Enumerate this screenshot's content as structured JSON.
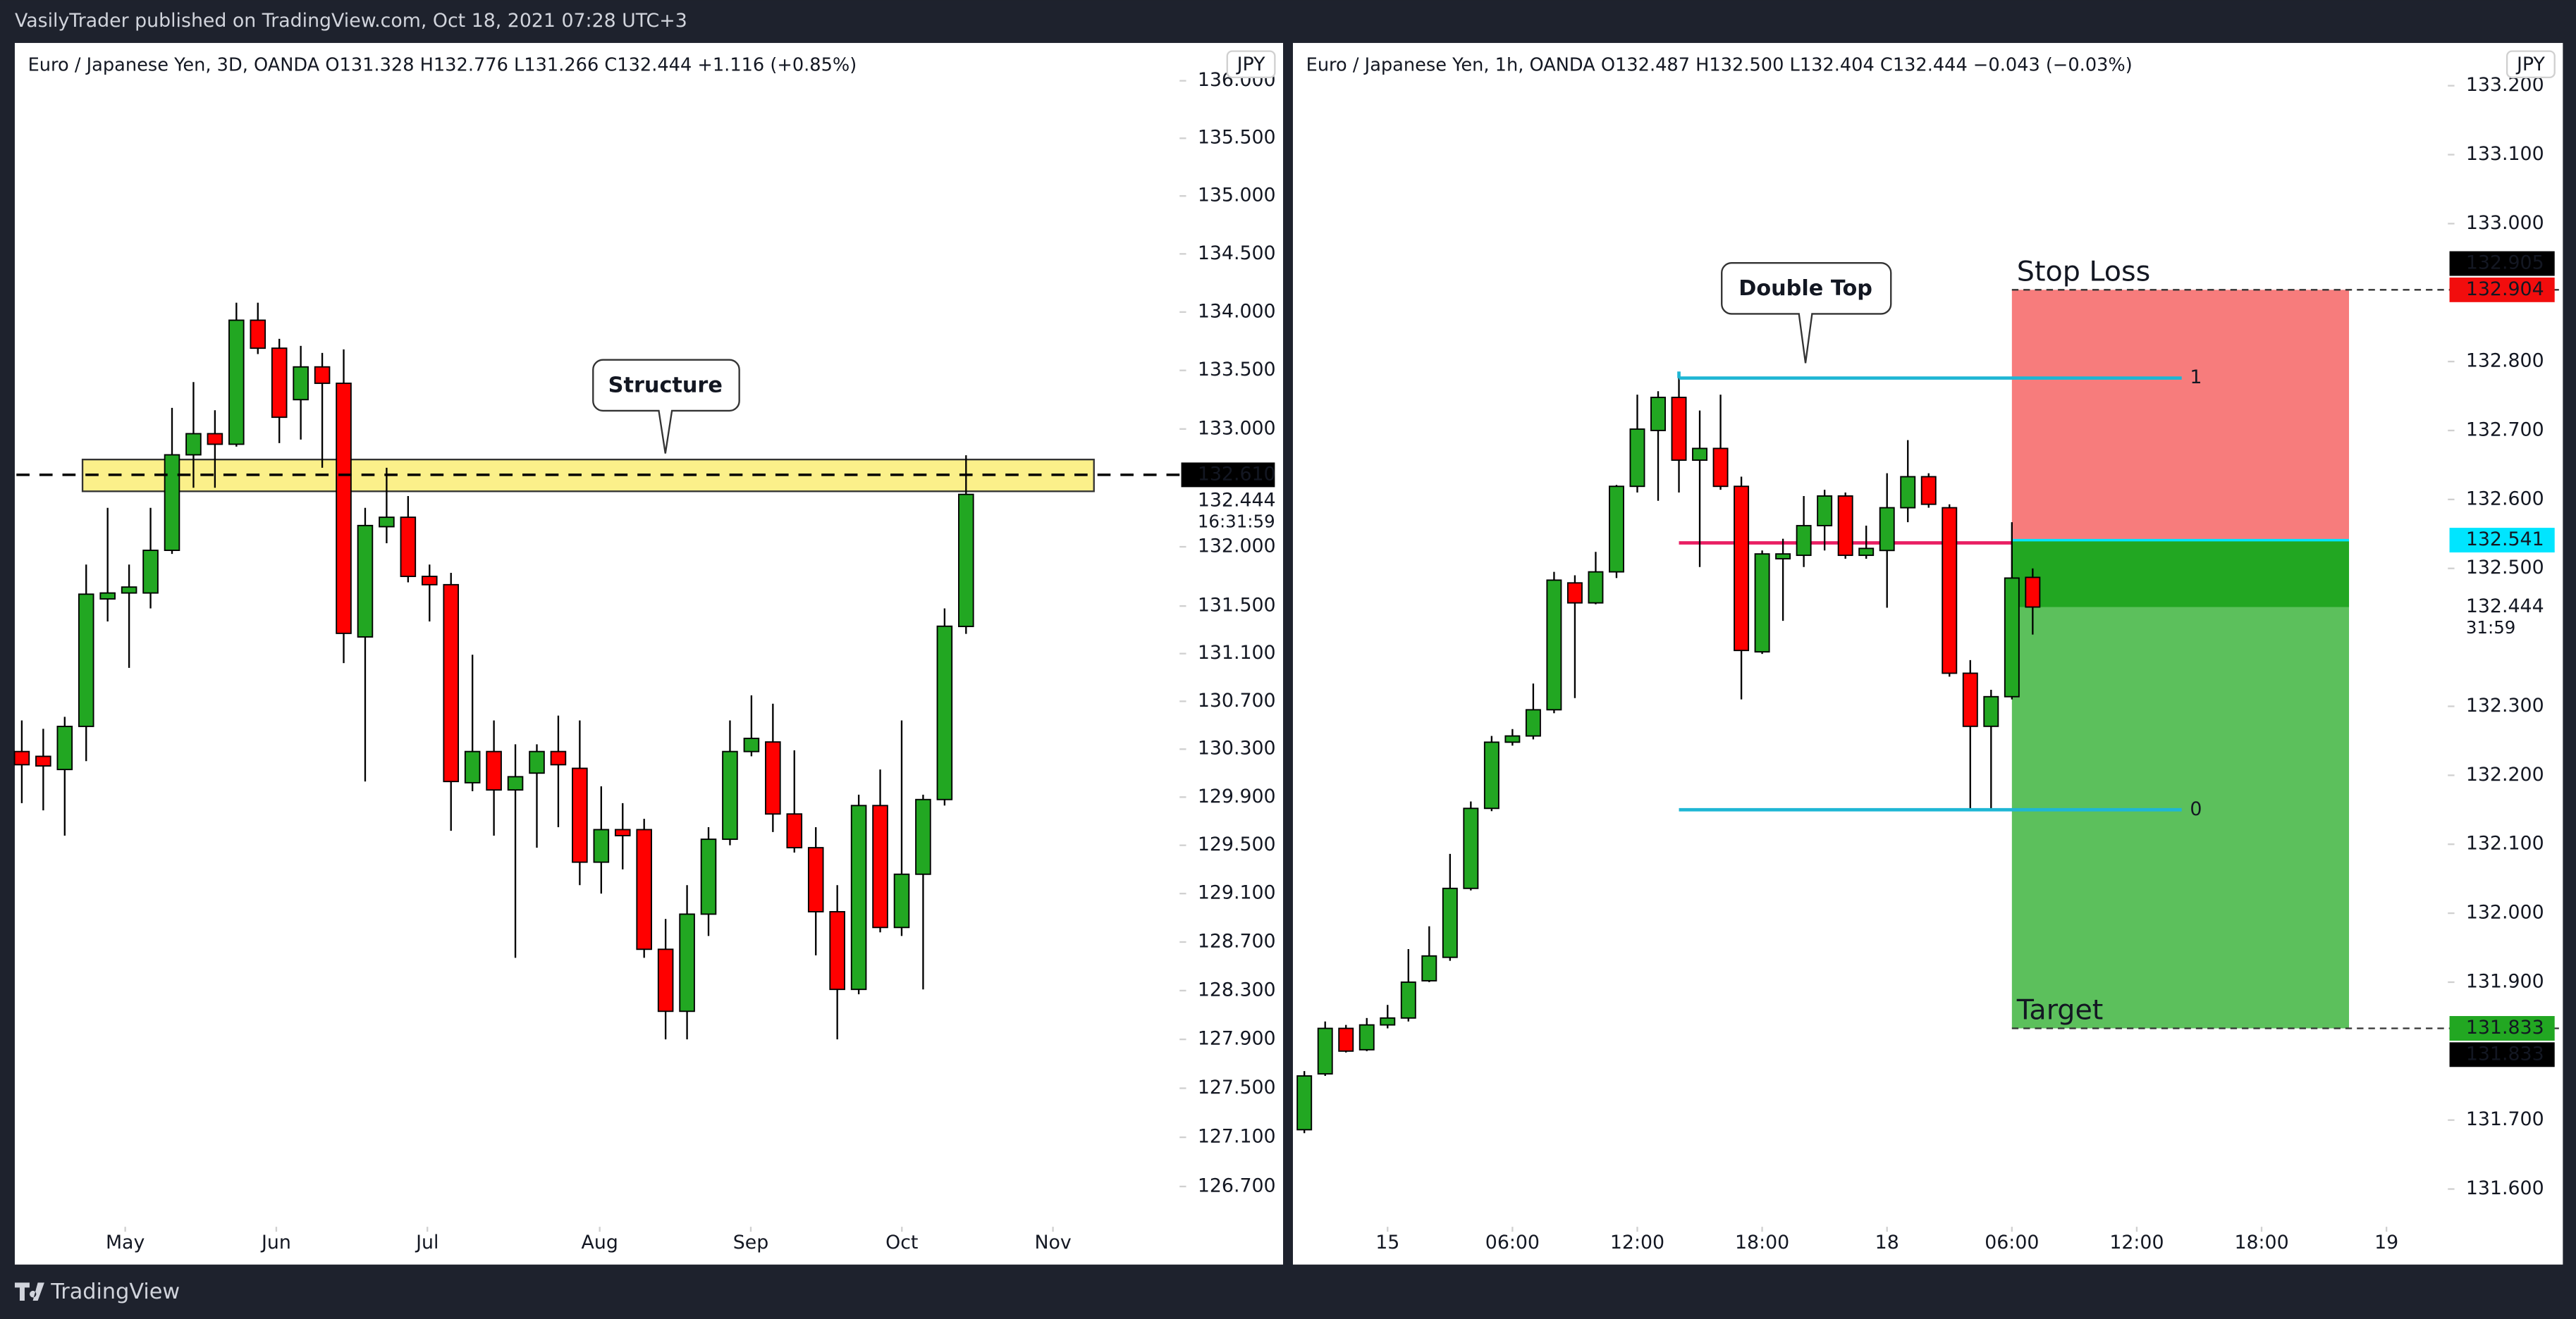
{
  "header": "VasilyTrader published on TradingView.com, Oct 18, 2021 07:28 UTC+3",
  "footer": "TradingView",
  "chart_data": [
    {
      "type": "candlestick",
      "title": "Euro / Japanese Yen, 3D, OANDA  O131.328  H132.776  L131.266  C132.444  +1.116 (+0.85%)",
      "currency": "JPY",
      "log": true,
      "up_color": "#22a722",
      "down_color": "#ff0000",
      "ylim": [
        126.4,
        136.33
      ],
      "yticks": [
        {
          "value": 136,
          "label": "136.000"
        },
        {
          "value": 135.5,
          "label": "135.500"
        },
        {
          "value": 135,
          "label": "135.000"
        },
        {
          "value": 134.5,
          "label": "134.500"
        },
        {
          "value": 134,
          "label": "134.000"
        },
        {
          "value": 133.5,
          "label": "133.500"
        },
        {
          "value": 133,
          "label": "133.000"
        },
        {
          "value": 132,
          "label": "132.000"
        },
        {
          "value": 131.5,
          "label": "131.500"
        },
        {
          "value": 131.1,
          "label": "131.100"
        },
        {
          "value": 130.7,
          "label": "130.700"
        },
        {
          "value": 130.3,
          "label": "130.300"
        },
        {
          "value": 129.9,
          "label": "129.900"
        },
        {
          "value": 129.5,
          "label": "129.500"
        },
        {
          "value": 129.1,
          "label": "129.100"
        },
        {
          "value": 128.7,
          "label": "128.700"
        },
        {
          "value": 128.3,
          "label": "128.300"
        },
        {
          "value": 127.9,
          "label": "127.900"
        },
        {
          "value": 127.5,
          "label": "127.500"
        },
        {
          "value": 127.1,
          "label": "127.100"
        },
        {
          "value": 126.7,
          "label": "126.700"
        }
      ],
      "xlim": [
        -0.25,
        53.95
      ],
      "xticks": [
        {
          "value": 4.82,
          "label": "May"
        },
        {
          "value": 11.86,
          "label": "Jun"
        },
        {
          "value": 18.9,
          "label": "Jul"
        },
        {
          "value": 26.93,
          "label": "Aug"
        },
        {
          "value": 33.97,
          "label": "Sep"
        },
        {
          "value": 41.01,
          "label": "Oct"
        },
        {
          "value": 48.05,
          "label": "Nov"
        }
      ],
      "open": [
        130.28,
        130.24,
        130.13,
        130.49,
        131.56,
        131.61,
        131.61,
        131.97,
        132.78,
        132.96,
        132.87,
        133.93,
        133.69,
        133.25,
        133.53,
        133.39,
        131.24,
        132.17,
        132.25,
        131.75,
        131.68,
        130.02,
        130.28,
        129.96,
        130.1,
        130.28,
        130.14,
        129.36,
        129.63,
        129.63,
        128.64,
        128.13,
        128.93,
        129.55,
        130.28,
        130.36,
        129.76,
        129.48,
        128.95,
        128.31,
        129.83,
        128.82,
        129.26,
        129.88,
        131.328
      ],
      "high": [
        130.54,
        130.47,
        130.57,
        131.85,
        132.33,
        131.85,
        132.33,
        133.18,
        133.4,
        133.16,
        134.08,
        134.08,
        133.77,
        133.71,
        133.65,
        133.68,
        132.33,
        132.67,
        132.43,
        131.85,
        131.78,
        131.09,
        130.54,
        130.34,
        130.34,
        130.58,
        130.54,
        129.99,
        129.85,
        129.72,
        128.89,
        129.17,
        129.65,
        130.54,
        130.75,
        130.68,
        130.29,
        129.65,
        129.17,
        129.92,
        130.13,
        130.54,
        129.92,
        131.48,
        132.776
      ],
      "low": [
        129.85,
        129.79,
        129.58,
        130.2,
        131.37,
        130.98,
        131.48,
        131.94,
        132.5,
        132.5,
        132.85,
        133.64,
        132.88,
        132.91,
        132.67,
        131.02,
        130.03,
        132.03,
        131.7,
        131.37,
        129.62,
        129.95,
        129.58,
        128.57,
        129.48,
        129.65,
        129.17,
        129.1,
        129.3,
        128.57,
        127.9,
        127.9,
        128.75,
        129.5,
        130.24,
        129.61,
        129.44,
        128.59,
        127.9,
        128.27,
        128.78,
        128.75,
        128.31,
        129.83,
        131.266
      ],
      "close": [
        130.17,
        130.16,
        130.49,
        131.6,
        131.61,
        131.66,
        131.97,
        132.78,
        132.96,
        132.87,
        133.93,
        133.69,
        133.1,
        133.53,
        133.39,
        131.27,
        132.18,
        132.25,
        131.75,
        131.68,
        130.03,
        130.28,
        129.96,
        130.07,
        130.28,
        130.17,
        129.36,
        129.63,
        129.58,
        128.64,
        128.13,
        128.93,
        129.55,
        130.28,
        130.39,
        129.76,
        129.48,
        128.95,
        128.31,
        129.83,
        128.82,
        129.26,
        129.88,
        131.33,
        132.444
      ],
      "zone": {
        "top": 132.74,
        "bottom": 132.47,
        "x": [
          2.83,
          49.96
        ],
        "color": "#fbf08a"
      },
      "hline": 132.61,
      "callout": "Structure",
      "price_labels": [
        {
          "value": 132.61,
          "label": "132.610",
          "bg": "#000000",
          "fg": "#ffffff"
        },
        {
          "value": 132.444,
          "label": "132.444",
          "bg": null,
          "fg": "#131722",
          "countdown": "16:31:59"
        }
      ]
    },
    {
      "type": "candlestick",
      "title": "Euro / Japanese Yen, 1h, OANDA  O132.487  H132.500  L132.404  C132.444  −0.043 (−0.03%)",
      "currency": "JPY",
      "log": false,
      "up_color": "#22a722",
      "down_color": "#ff0000",
      "ylim": [
        131.55,
        133.262
      ],
      "yticks": [
        {
          "value": 133.2,
          "label": "133.200"
        },
        {
          "value": 133.1,
          "label": "133.100"
        },
        {
          "value": 133,
          "label": "133.000"
        },
        {
          "value": 132.8,
          "label": "132.800"
        },
        {
          "value": 132.7,
          "label": "132.700"
        },
        {
          "value": 132.6,
          "label": "132.600"
        },
        {
          "value": 132.5,
          "label": "132.500"
        },
        {
          "value": 132.3,
          "label": "132.300"
        },
        {
          "value": 132.2,
          "label": "132.200"
        },
        {
          "value": 132.1,
          "label": "132.100"
        },
        {
          "value": 132,
          "label": "132.000"
        },
        {
          "value": 131.9,
          "label": "131.900"
        },
        {
          "value": 131.7,
          "label": "131.700"
        },
        {
          "value": 131.6,
          "label": "131.600"
        }
      ],
      "xlim": [
        -0.47,
        54.95
      ],
      "xticks": [
        {
          "value": 4,
          "label": "15"
        },
        {
          "value": 10,
          "label": "06:00"
        },
        {
          "value": 16,
          "label": "12:00"
        },
        {
          "value": 22,
          "label": "18:00"
        },
        {
          "value": 28,
          "label": "18"
        },
        {
          "value": 34,
          "label": "06:00"
        },
        {
          "value": 40,
          "label": "12:00"
        },
        {
          "value": 46,
          "label": "18:00"
        },
        {
          "value": 52,
          "label": "19"
        }
      ],
      "open": [
        131.686,
        131.767,
        131.833,
        131.802,
        131.838,
        131.848,
        131.902,
        131.936,
        132.036,
        132.152,
        132.248,
        132.257,
        132.295,
        132.479,
        132.45,
        132.495,
        132.619,
        132.7,
        132.748,
        132.657,
        132.674,
        132.619,
        132.379,
        132.514,
        132.519,
        132.562,
        132.605,
        132.519,
        132.526,
        132.588,
        132.633,
        132.588,
        132.348,
        132.271,
        132.314,
        132.487
      ],
      "high": [
        131.771,
        131.843,
        131.838,
        131.848,
        131.867,
        131.948,
        131.981,
        132.086,
        132.162,
        132.257,
        132.267,
        132.333,
        132.495,
        132.49,
        132.524,
        132.621,
        132.752,
        132.757,
        132.776,
        132.729,
        132.752,
        132.633,
        132.526,
        132.543,
        132.605,
        132.614,
        132.61,
        132.562,
        132.638,
        132.686,
        132.638,
        132.593,
        132.367,
        132.324,
        132.567,
        132.5
      ],
      "low": [
        131.681,
        131.764,
        131.798,
        131.8,
        131.833,
        131.843,
        131.9,
        131.931,
        132.033,
        132.148,
        132.243,
        132.252,
        132.29,
        132.312,
        132.448,
        132.486,
        132.61,
        132.598,
        132.61,
        132.502,
        132.614,
        132.31,
        132.376,
        132.424,
        132.502,
        132.526,
        132.514,
        132.514,
        132.443,
        132.567,
        132.588,
        132.343,
        132.15,
        132.15,
        132.31,
        132.404
      ],
      "close": [
        131.764,
        131.833,
        131.8,
        131.838,
        131.848,
        131.9,
        131.938,
        132.036,
        132.152,
        132.248,
        132.257,
        132.295,
        132.483,
        132.45,
        132.495,
        132.619,
        132.702,
        132.748,
        132.657,
        132.674,
        132.619,
        132.381,
        132.521,
        132.521,
        132.562,
        132.605,
        132.519,
        132.529,
        132.588,
        132.633,
        132.593,
        132.348,
        132.271,
        132.314,
        132.486,
        132.444
      ],
      "fib": {
        "x": [
          18,
          42.16
        ],
        "levels": [
          {
            "value": 132.776,
            "label": "1",
            "color": "#888888"
          },
          {
            "value": 132.15,
            "label": "0",
            "color": "#22ab94"
          }
        ],
        "color": "#1eb6d4",
        "mid": {
          "value": 132.537,
          "x": [
            18,
            34
          ],
          "color": "#e91e63"
        }
      },
      "position": {
        "x": [
          34,
          50.2
        ],
        "entry": 132.541,
        "stop": 132.904,
        "target": 131.833,
        "stop_text": "Stop Loss",
        "target_text": "Target",
        "stop_color": "#f77c7c",
        "target_color": "#5cc05c",
        "open_color": "#22a722"
      },
      "callout": "Double Top",
      "price_labels": [
        {
          "value": 132.904,
          "label": "132.904",
          "bg": "#f20d0d",
          "fg": "#ffffff"
        },
        {
          "value": 132.905,
          "label": "132.905",
          "bg": "#000000",
          "fg": "#ffffff"
        },
        {
          "value": 132.541,
          "label": "132.541",
          "bg": "#00e5ff",
          "fg": "#000000"
        },
        {
          "value": 132.444,
          "label": "132.444",
          "bg": null,
          "fg": "#131722",
          "countdown": "31:59"
        },
        {
          "value": 131.833,
          "label": "131.833",
          "bg": "#22a722",
          "fg": "#ffffff"
        },
        {
          "value": 131.833,
          "label": "131.833",
          "bg": "#000000",
          "fg": "#ffffff"
        }
      ]
    }
  ]
}
